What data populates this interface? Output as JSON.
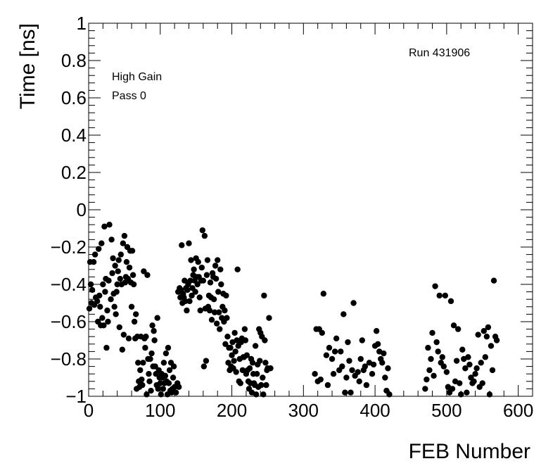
{
  "chart_data": {
    "type": "scatter",
    "title": "",
    "xlabel": "FEB Number",
    "ylabel": "Time [ns]",
    "xlim": [
      0,
      620
    ],
    "ylim": [
      -1,
      1
    ],
    "x_ticks": [
      0,
      100,
      200,
      300,
      400,
      500,
      600
    ],
    "x_tick_labels": [
      "0",
      "100",
      "200",
      "300",
      "400",
      "500",
      "600"
    ],
    "y_ticks": [
      -1,
      -0.8,
      -0.6,
      -0.4,
      -0.2,
      0,
      0.2,
      0.4,
      0.6,
      0.8,
      1
    ],
    "y_tick_labels": [
      "−1",
      "−0.8",
      "−0.6",
      "−0.4",
      "−0.2",
      "0",
      "0.2",
      "0.4",
      "0.6",
      "0.8",
      "1"
    ],
    "grid": false,
    "annotations": {
      "run": "Run 431906",
      "gain": "High Gain",
      "pass": "Pass 0"
    },
    "marker_color": "#000000",
    "points": [
      [
        1,
        -0.53
      ],
      [
        2,
        -0.28
      ],
      [
        3,
        -0.4
      ],
      [
        4,
        -0.5
      ],
      [
        5,
        -0.43
      ],
      [
        7,
        -0.28
      ],
      [
        8,
        -0.51
      ],
      [
        9,
        -0.24
      ],
      [
        10,
        -0.47
      ],
      [
        12,
        -0.49
      ],
      [
        13,
        -0.6
      ],
      [
        14,
        -0.21
      ],
      [
        15,
        -0.46
      ],
      [
        16,
        -0.52
      ],
      [
        17,
        -0.62
      ],
      [
        18,
        -0.18
      ],
      [
        19,
        -0.58
      ],
      [
        20,
        -0.4
      ],
      [
        21,
        -0.62
      ],
      [
        22,
        -0.09
      ],
      [
        23,
        -0.44
      ],
      [
        24,
        -0.37
      ],
      [
        25,
        -0.74
      ],
      [
        26,
        -0.54
      ],
      [
        27,
        -0.6
      ],
      [
        28,
        -0.38
      ],
      [
        29,
        -0.08
      ],
      [
        31,
        -0.48
      ],
      [
        32,
        -0.16
      ],
      [
        33,
        -0.34
      ],
      [
        34,
        -0.26
      ],
      [
        35,
        -0.45
      ],
      [
        36,
        -0.52
      ],
      [
        37,
        -0.3
      ],
      [
        38,
        -0.56
      ],
      [
        39,
        -0.44
      ],
      [
        40,
        -0.4
      ],
      [
        41,
        -0.33
      ],
      [
        42,
        -0.27
      ],
      [
        43,
        -0.63
      ],
      [
        44,
        -0.37
      ],
      [
        45,
        -0.24
      ],
      [
        46,
        -0.4
      ],
      [
        47,
        -0.75
      ],
      [
        48,
        -0.18
      ],
      [
        49,
        -0.67
      ],
      [
        50,
        -0.14
      ],
      [
        51,
        -0.39
      ],
      [
        52,
        -0.36
      ],
      [
        53,
        -0.28
      ],
      [
        54,
        -0.2
      ],
      [
        55,
        -0.37
      ],
      [
        56,
        -0.69
      ],
      [
        57,
        -0.31
      ],
      [
        58,
        -0.22
      ],
      [
        59,
        -0.39
      ],
      [
        60,
        -0.52
      ],
      [
        61,
        -0.22
      ],
      [
        62,
        -0.35
      ],
      [
        63,
        -0.4
      ],
      [
        64,
        -0.6
      ],
      [
        65,
        -0.69
      ],
      [
        66,
        -0.56
      ],
      [
        67,
        -0.96
      ],
      [
        68,
        -0.68
      ],
      [
        69,
        -0.82
      ],
      [
        70,
        -0.92
      ],
      [
        71,
        -0.95
      ],
      [
        72,
        -0.86
      ],
      [
        73,
        -0.68
      ],
      [
        74,
        -0.91
      ],
      [
        75,
        -0.94
      ],
      [
        76,
        -0.82
      ],
      [
        77,
        -0.33
      ],
      [
        78,
        -0.69
      ],
      [
        79,
        -0.74
      ],
      [
        80,
        -0.68
      ],
      [
        81,
        -0.99
      ],
      [
        82,
        -0.35
      ],
      [
        83,
        -0.8
      ],
      [
        84,
        -0.88
      ],
      [
        85,
        -0.92
      ],
      [
        86,
        -0.8
      ],
      [
        87,
        -0.97
      ],
      [
        88,
        -0.77
      ],
      [
        89,
        -0.62
      ],
      [
        90,
        -0.84
      ],
      [
        91,
        -0.65
      ],
      [
        92,
        -0.7
      ],
      [
        93,
        -0.84
      ],
      [
        94,
        -0.88
      ],
      [
        95,
        -0.94
      ],
      [
        96,
        -0.58
      ],
      [
        97,
        -0.96
      ],
      [
        98,
        -0.86
      ],
      [
        99,
        -0.9
      ],
      [
        100,
        -0.93
      ],
      [
        101,
        -0.99
      ],
      [
        102,
        -0.88
      ],
      [
        103,
        -0.9
      ],
      [
        104,
        -0.96
      ],
      [
        105,
        -0.82
      ],
      [
        106,
        -0.93
      ],
      [
        107,
        -0.89
      ],
      [
        108,
        -0.77
      ],
      [
        109,
        -0.92
      ],
      [
        110,
        -0.99
      ],
      [
        111,
        -0.74
      ],
      [
        112,
        -0.93
      ],
      [
        113,
        -0.86
      ],
      [
        114,
        -0.97
      ],
      [
        115,
        -0.82
      ],
      [
        116,
        -0.98
      ],
      [
        117,
        -0.96
      ],
      [
        118,
        -0.9
      ],
      [
        119,
        -0.84
      ],
      [
        120,
        -0.95
      ],
      [
        122,
        -0.98
      ],
      [
        124,
        -0.93
      ],
      [
        125,
        -0.44
      ],
      [
        126,
        -0.95
      ],
      [
        127,
        -0.42
      ],
      [
        128,
        -0.47
      ],
      [
        129,
        -0.43
      ],
      [
        130,
        -0.19
      ],
      [
        131,
        -0.5
      ],
      [
        132,
        -0.45
      ],
      [
        133,
        -0.47
      ],
      [
        134,
        -0.38
      ],
      [
        135,
        -0.49
      ],
      [
        136,
        -0.42
      ],
      [
        137,
        -0.54
      ],
      [
        138,
        -0.43
      ],
      [
        139,
        -0.4
      ],
      [
        140,
        -0.18
      ],
      [
        141,
        -0.49
      ],
      [
        142,
        -0.38
      ],
      [
        143,
        -0.27
      ],
      [
        144,
        -0.46
      ],
      [
        145,
        -0.42
      ],
      [
        146,
        -0.35
      ],
      [
        147,
        -0.32
      ],
      [
        148,
        -0.38
      ],
      [
        149,
        -0.44
      ],
      [
        150,
        -0.26
      ],
      [
        151,
        -0.36
      ],
      [
        152,
        -0.4
      ],
      [
        153,
        -0.28
      ],
      [
        154,
        -0.36
      ],
      [
        155,
        -0.47
      ],
      [
        156,
        -0.54
      ],
      [
        157,
        -0.38
      ],
      [
        158,
        -0.31
      ],
      [
        159,
        -0.11
      ],
      [
        160,
        -0.38
      ],
      [
        161,
        -0.84
      ],
      [
        162,
        -0.14
      ],
      [
        163,
        -0.53
      ],
      [
        164,
        -0.81
      ],
      [
        165,
        -0.35
      ],
      [
        166,
        -0.27
      ],
      [
        167,
        -0.52
      ],
      [
        168,
        -0.46
      ],
      [
        169,
        -0.54
      ],
      [
        170,
        -0.39
      ],
      [
        171,
        -0.47
      ],
      [
        172,
        -0.59
      ],
      [
        173,
        -0.34
      ],
      [
        174,
        -0.36
      ],
      [
        175,
        -0.48
      ],
      [
        176,
        -0.55
      ],
      [
        177,
        -0.3
      ],
      [
        178,
        -0.37
      ],
      [
        179,
        -0.61
      ],
      [
        180,
        -0.27
      ],
      [
        181,
        -0.44
      ],
      [
        182,
        -0.55
      ],
      [
        183,
        -0.64
      ],
      [
        184,
        -0.32
      ],
      [
        185,
        -0.4
      ],
      [
        186,
        -0.58
      ],
      [
        187,
        -0.52
      ],
      [
        188,
        -0.45
      ],
      [
        189,
        -0.6
      ],
      [
        190,
        -0.54
      ],
      [
        191,
        -0.72
      ],
      [
        192,
        -0.46
      ],
      [
        193,
        -0.58
      ],
      [
        194,
        -0.68
      ],
      [
        195,
        -0.82
      ],
      [
        196,
        -0.74
      ],
      [
        197,
        -0.86
      ],
      [
        198,
        -0.74
      ],
      [
        199,
        -0.84
      ],
      [
        200,
        -0.78
      ],
      [
        201,
        -0.71
      ],
      [
        202,
        -0.85
      ],
      [
        203,
        -0.81
      ],
      [
        204,
        -0.66
      ],
      [
        205,
        -0.76
      ],
      [
        206,
        -0.87
      ],
      [
        207,
        -0.7
      ],
      [
        208,
        -0.32
      ],
      [
        209,
        -0.73
      ],
      [
        210,
        -0.92
      ],
      [
        211,
        -0.8
      ],
      [
        212,
        -0.93
      ],
      [
        213,
        -0.71
      ],
      [
        214,
        -0.69
      ],
      [
        215,
        -0.86
      ],
      [
        216,
        -0.79
      ],
      [
        217,
        -0.79
      ],
      [
        218,
        -0.64
      ],
      [
        219,
        -0.7
      ],
      [
        220,
        -0.88
      ],
      [
        221,
        -0.78
      ],
      [
        222,
        -0.86
      ],
      [
        223,
        -0.92
      ],
      [
        224,
        -0.96
      ],
      [
        225,
        -0.85
      ],
      [
        226,
        -0.93
      ],
      [
        227,
        -0.8
      ],
      [
        228,
        -0.98
      ],
      [
        229,
        -0.82
      ],
      [
        230,
        -0.88
      ],
      [
        231,
        -0.93
      ],
      [
        232,
        -0.94
      ],
      [
        233,
        -0.73
      ],
      [
        234,
        -0.99
      ],
      [
        235,
        -0.88
      ],
      [
        236,
        -0.83
      ],
      [
        237,
        -0.95
      ],
      [
        238,
        -0.64
      ],
      [
        239,
        -0.81
      ],
      [
        240,
        -0.66
      ],
      [
        241,
        -0.94
      ],
      [
        242,
        -0.68
      ],
      [
        243,
        -0.9
      ],
      [
        244,
        -0.99
      ],
      [
        245,
        -0.46
      ],
      [
        246,
        -0.7
      ],
      [
        247,
        -0.82
      ],
      [
        248,
        -0.94
      ],
      [
        249,
        -0.86
      ],
      [
        250,
        -0.85
      ],
      [
        252,
        -0.58
      ],
      [
        254,
        -0.85
      ],
      [
        316,
        -0.88
      ],
      [
        318,
        -0.64
      ],
      [
        320,
        -0.92
      ],
      [
        322,
        -0.64
      ],
      [
        324,
        -0.91
      ],
      [
        326,
        -0.66
      ],
      [
        328,
        -0.45
      ],
      [
        332,
        -0.78
      ],
      [
        334,
        -0.94
      ],
      [
        336,
        -0.74
      ],
      [
        340,
        -0.8
      ],
      [
        342,
        -0.88
      ],
      [
        344,
        -0.76
      ],
      [
        346,
        -0.69
      ],
      [
        350,
        -0.86
      ],
      [
        352,
        -0.76
      ],
      [
        354,
        -0.84
      ],
      [
        356,
        -0.56
      ],
      [
        358,
        -0.98
      ],
      [
        360,
        -0.9
      ],
      [
        362,
        -0.71
      ],
      [
        364,
        -0.81
      ],
      [
        366,
        -0.98
      ],
      [
        368,
        -0.86
      ],
      [
        370,
        -0.5
      ],
      [
        372,
        -0.89
      ],
      [
        376,
        -0.87
      ],
      [
        378,
        -0.92
      ],
      [
        380,
        -0.8
      ],
      [
        382,
        -0.7
      ],
      [
        384,
        -0.86
      ],
      [
        386,
        -0.84
      ],
      [
        388,
        -0.94
      ],
      [
        392,
        -0.82
      ],
      [
        396,
        -0.88
      ],
      [
        398,
        -0.83
      ],
      [
        400,
        -0.73
      ],
      [
        402,
        -0.65
      ],
      [
        404,
        -0.72
      ],
      [
        406,
        -0.76
      ],
      [
        408,
        -0.8
      ],
      [
        410,
        -0.82
      ],
      [
        412,
        -0.77
      ],
      [
        414,
        -0.9
      ],
      [
        416,
        -0.97
      ],
      [
        418,
        -0.85
      ],
      [
        420,
        -0.99
      ],
      [
        470,
        -0.96
      ],
      [
        472,
        -0.91
      ],
      [
        474,
        -0.74
      ],
      [
        476,
        -0.86
      ],
      [
        478,
        -0.8
      ],
      [
        480,
        -0.66
      ],
      [
        482,
        -0.89
      ],
      [
        484,
        -0.41
      ],
      [
        486,
        -0.71
      ],
      [
        488,
        -0.76
      ],
      [
        490,
        -0.46
      ],
      [
        492,
        -0.82
      ],
      [
        494,
        -0.79
      ],
      [
        496,
        -0.84
      ],
      [
        498,
        -0.46
      ],
      [
        500,
        -0.87
      ],
      [
        502,
        -0.95
      ],
      [
        504,
        -0.98
      ],
      [
        506,
        -0.49
      ],
      [
        508,
        -0.96
      ],
      [
        510,
        -0.62
      ],
      [
        512,
        -0.92
      ],
      [
        514,
        -0.81
      ],
      [
        516,
        -0.64
      ],
      [
        518,
        -0.93
      ],
      [
        520,
        -0.99
      ],
      [
        522,
        -0.75
      ],
      [
        524,
        -0.8
      ],
      [
        526,
        -0.85
      ],
      [
        528,
        -0.98
      ],
      [
        530,
        -0.79
      ],
      [
        532,
        -0.83
      ],
      [
        534,
        -0.9
      ],
      [
        536,
        -0.93
      ],
      [
        538,
        -0.92
      ],
      [
        540,
        -0.88
      ],
      [
        542,
        -0.85
      ],
      [
        544,
        -0.67
      ],
      [
        546,
        -0.95
      ],
      [
        548,
        -0.82
      ],
      [
        550,
        -0.93
      ],
      [
        552,
        -0.65
      ],
      [
        554,
        -0.79
      ],
      [
        556,
        -0.68
      ],
      [
        558,
        -0.63
      ],
      [
        560,
        -0.99
      ],
      [
        562,
        -0.73
      ],
      [
        564,
        -0.86
      ],
      [
        566,
        -0.38
      ],
      [
        568,
        -0.68
      ],
      [
        570,
        -0.7
      ]
    ]
  }
}
